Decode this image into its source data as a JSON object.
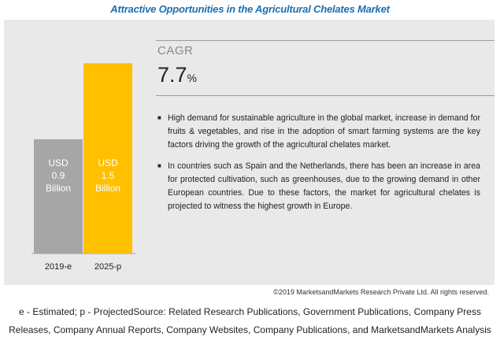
{
  "title": "Attractive Opportunities in the Agricultural Chelates Market",
  "chart_data": {
    "type": "bar",
    "categories": [
      "2019-e",
      "2025-p"
    ],
    "values": [
      0.9,
      1.5
    ],
    "unit": "USD Billion",
    "bar_labels": [
      [
        "USD",
        "0.9",
        "Billion"
      ],
      [
        "USD",
        "1.5",
        "Billion"
      ]
    ],
    "colors": [
      "#a6a6a6",
      "#ffc000"
    ],
    "ylim": [
      0,
      1.75
    ]
  },
  "cagr": {
    "label": "CAGR",
    "value": "7.7",
    "unit": "%"
  },
  "bullets": [
    "High demand for sustainable agriculture in the global market, increase in demand for fruits & vegetables, and rise in the adoption of smart farming systems are the key factors driving the growth of the agricultural chelates market.",
    "In countries such as Spain and the Netherlands, there has been an increase in area for protected cultivation, such as greenhouses, due to the growing demand in other European countries. Due to these factors, the market for agricultural chelates is projected to witness the highest growth in Europe."
  ],
  "bullet_glyph": "■",
  "copyright": "©2019 MarketsandMarkets Research Private Ltd. All rights reserved.",
  "footnote": "e - Estimated; p - ProjectedSource: Related Research Publications, Government Publications, Company Press Releases, Company Annual Reports, Company Websites, Company Publications, and MarketsandMarkets Analysis"
}
